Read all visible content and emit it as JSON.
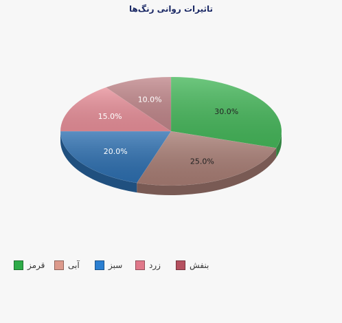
{
  "chart_data": {
    "type": "pie",
    "title": "تاثیرات روانی رنگ‌ها",
    "categories": [
      "قرمز",
      "آبی",
      "سبز",
      "زرد",
      "بنفش"
    ],
    "values": [
      30,
      25,
      20,
      15,
      10
    ],
    "value_labels": [
      "30.0%",
      "25.0%",
      "20.0%",
      "15.0%",
      "10.0%"
    ],
    "colors": [
      "#45b75a",
      "#a87d74",
      "#2d6fb0",
      "#e8909a",
      "#c0868a"
    ],
    "legend_colors": [
      "#2eab48",
      "#dc9a8c",
      "#2b7fd1",
      "#e0788a",
      "#b5505f"
    ],
    "label_colors": [
      "#222222",
      "#222222",
      "#ffffff",
      "#ffffff",
      "#ffffff"
    ],
    "legend_position": "bottom",
    "style": "3d"
  }
}
